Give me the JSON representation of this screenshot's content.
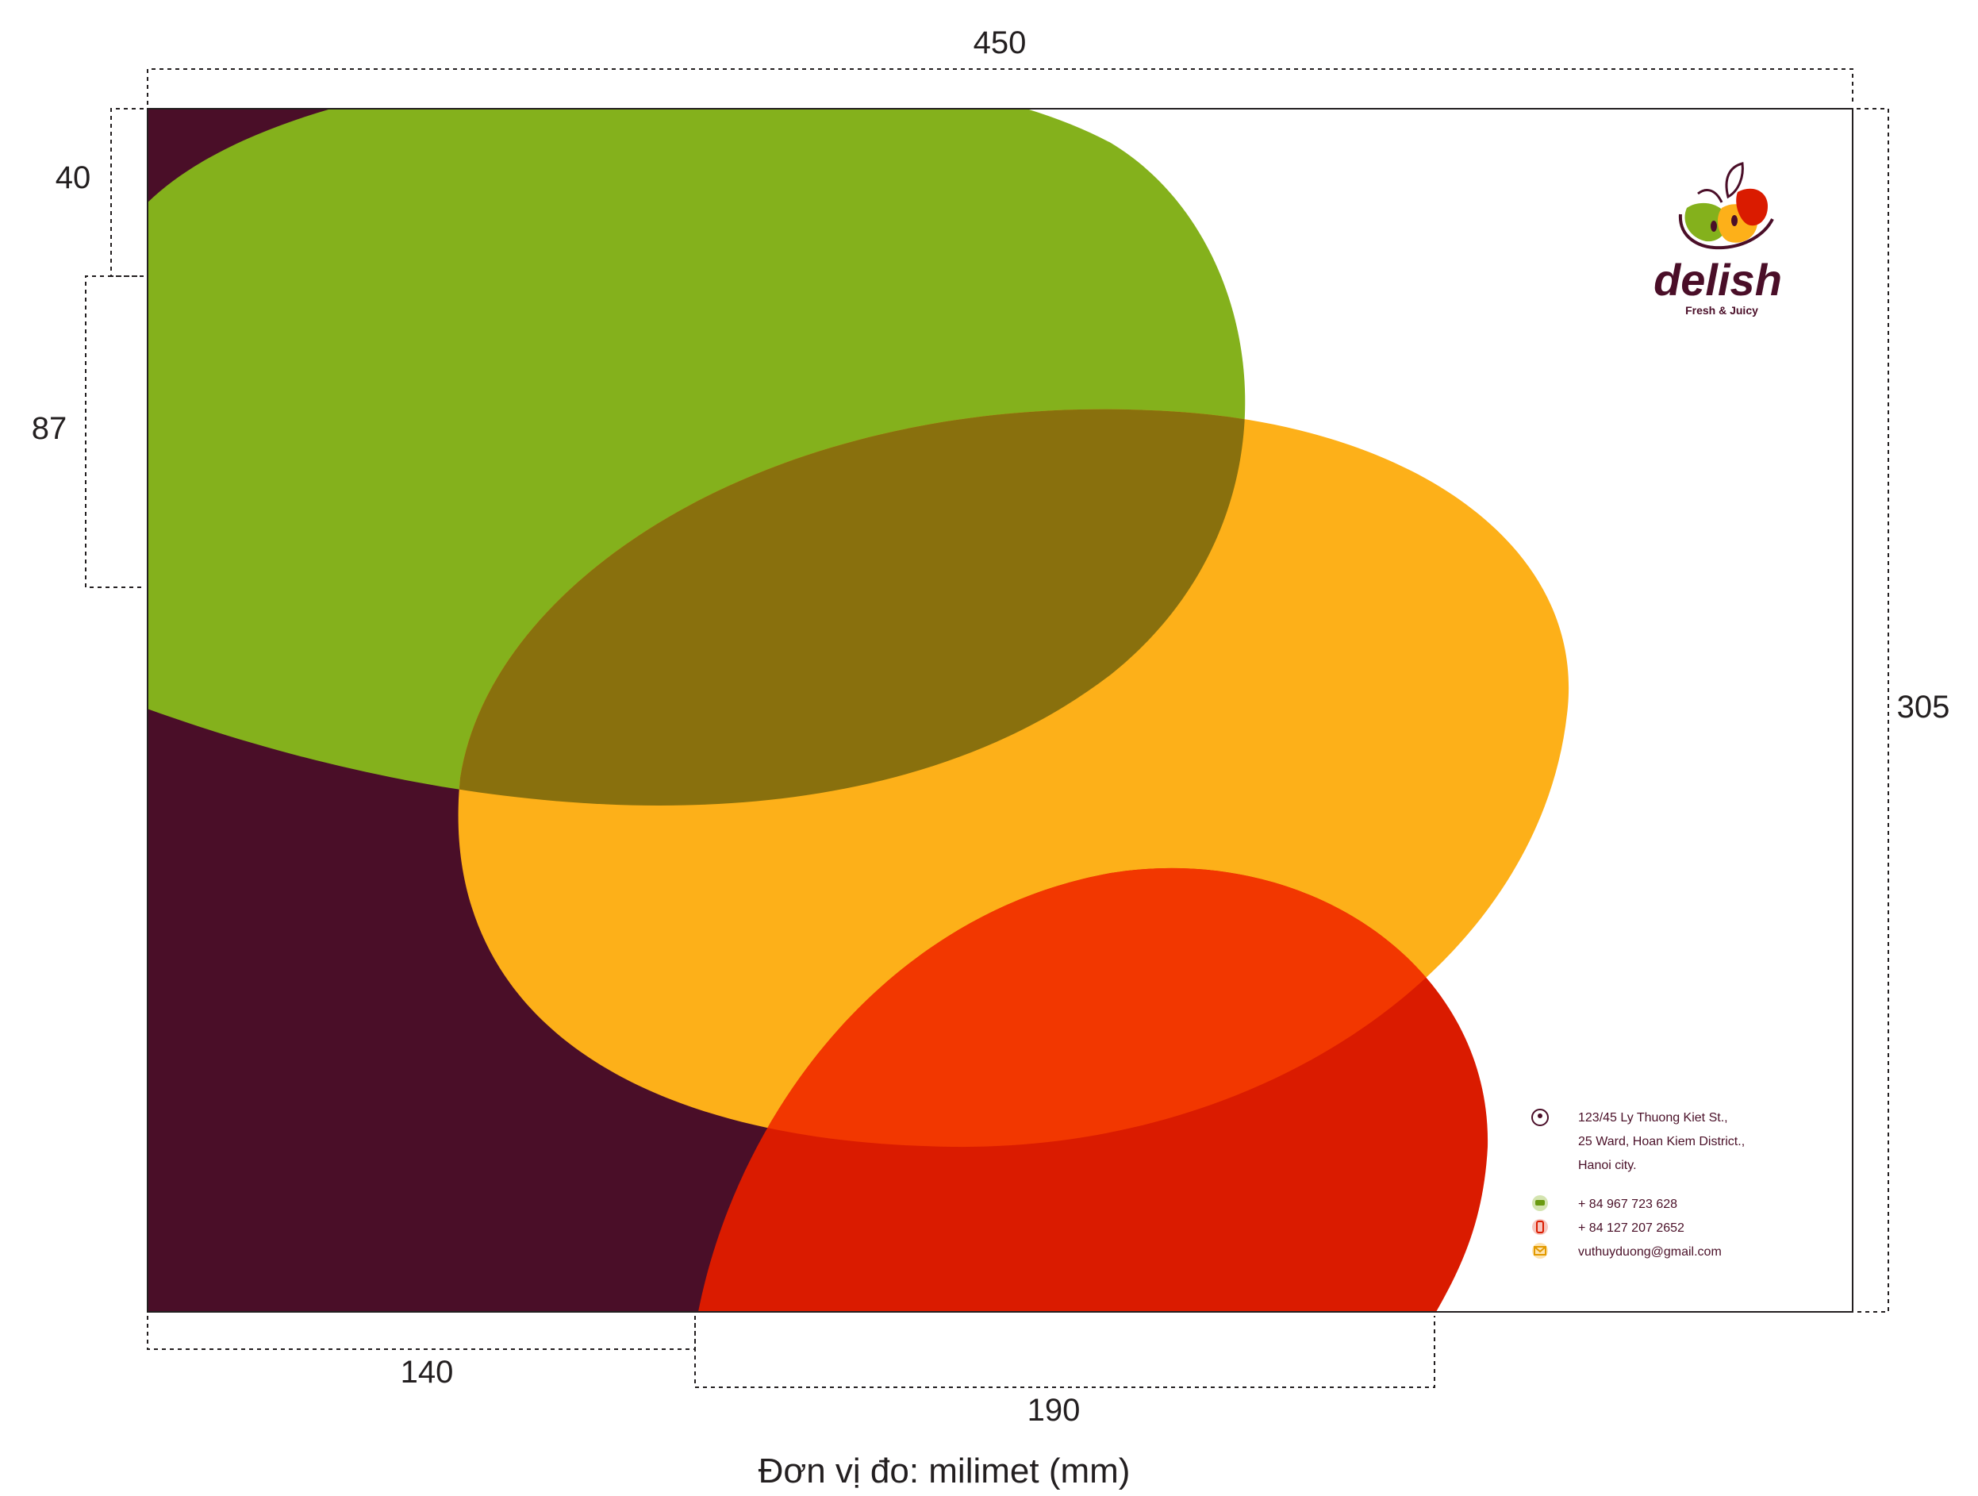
{
  "dimensions": {
    "width": "450",
    "height": "305",
    "top_margin": "40",
    "side_band": "87",
    "bottom_left": "140",
    "bottom_mid": "190"
  },
  "unit_note": "Đơn vị đo: milimet (mm)",
  "brand": {
    "name": "delish",
    "tagline": "Fresh & Juicy"
  },
  "contact": {
    "address_line1": "123/45 Ly Thuong Kiet St.,",
    "address_line2": "25 Ward, Hoan Kiem District.,",
    "address_line3": "Hanoi city.",
    "phone1": "+ 84 967 723 628",
    "phone2": "+ 84 127 207 2652",
    "email": "vuthuyduong@gmail.com"
  },
  "colors": {
    "background": "#4a0e28",
    "green": "#84b11c",
    "orange": "#fdb019",
    "red": "#da1b00",
    "overlap_olive": "#89700d",
    "overlap_redorange": "#f23700"
  },
  "icons": {
    "address": "location-pin-icon",
    "phone1": "telephone-icon",
    "phone2": "mobile-phone-icon",
    "email": "envelope-icon"
  }
}
